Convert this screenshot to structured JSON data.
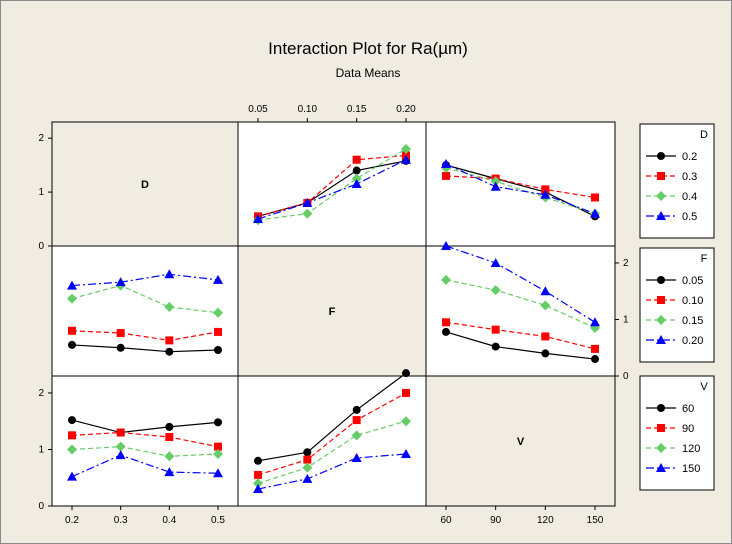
{
  "chart_data": {
    "type": "line",
    "title": "Interaction Plot for Ra(µm)",
    "subtitle": "Data Means",
    "factors": [
      {
        "name": "D",
        "levels": [
          "0.2",
          "0.3",
          "0.4",
          "0.5"
        ],
        "values": [
          0.2,
          0.3,
          0.4,
          0.5
        ]
      },
      {
        "name": "F",
        "levels": [
          "0.05",
          "0.10",
          "0.15",
          "0.20"
        ],
        "values": [
          0.05,
          0.1,
          0.15,
          0.2
        ]
      },
      {
        "name": "V",
        "levels": [
          "60",
          "90",
          "120",
          "150"
        ],
        "values": [
          60,
          90,
          120,
          150
        ]
      }
    ],
    "yaxis": {
      "ylim": [
        0,
        2.3
      ],
      "ticks": [
        0,
        1,
        2
      ]
    },
    "series_colors": [
      "#000000",
      "#ff0000",
      "#66cc66",
      "#0000ff"
    ],
    "series_markers": [
      "circle",
      "square",
      "diamond",
      "triangle"
    ],
    "panels": [
      {
        "row": "D",
        "col": "F",
        "series": [
          {
            "name": "0.2",
            "values": [
              0.55,
              0.8,
              1.4,
              1.58
            ]
          },
          {
            "name": "0.3",
            "values": [
              0.55,
              0.8,
              1.6,
              1.68
            ]
          },
          {
            "name": "0.4",
            "values": [
              0.48,
              0.6,
              1.25,
              1.8
            ]
          },
          {
            "name": "0.5",
            "values": [
              0.5,
              0.8,
              1.15,
              1.6
            ]
          }
        ]
      },
      {
        "row": "D",
        "col": "V",
        "series": [
          {
            "name": "0.2",
            "values": [
              1.5,
              1.25,
              1.0,
              0.55
            ]
          },
          {
            "name": "0.3",
            "values": [
              1.3,
              1.25,
              1.05,
              0.9
            ]
          },
          {
            "name": "0.4",
            "values": [
              1.45,
              1.2,
              0.9,
              0.6
            ]
          },
          {
            "name": "0.5",
            "values": [
              1.52,
              1.1,
              0.95,
              0.6
            ]
          }
        ]
      },
      {
        "row": "F",
        "col": "D",
        "series": [
          {
            "name": "0.05",
            "values": [
              0.55,
              0.5,
              0.43,
              0.46
            ]
          },
          {
            "name": "0.10",
            "values": [
              0.8,
              0.76,
              0.63,
              0.78
            ]
          },
          {
            "name": "0.15",
            "values": [
              1.37,
              1.6,
              1.22,
              1.12
            ]
          },
          {
            "name": "0.20",
            "values": [
              1.6,
              1.66,
              1.8,
              1.7
            ]
          }
        ]
      },
      {
        "row": "F",
        "col": "V",
        "series": [
          {
            "name": "0.05",
            "values": [
              0.78,
              0.52,
              0.4,
              0.3
            ]
          },
          {
            "name": "0.10",
            "values": [
              0.95,
              0.82,
              0.7,
              0.48
            ]
          },
          {
            "name": "0.15",
            "values": [
              1.7,
              1.52,
              1.25,
              0.85
            ]
          },
          {
            "name": "0.20",
            "values": [
              2.3,
              2.0,
              1.5,
              0.95
            ]
          }
        ]
      },
      {
        "row": "V",
        "col": "D",
        "series": [
          {
            "name": "60",
            "values": [
              1.52,
              1.3,
              1.4,
              1.48
            ]
          },
          {
            "name": "90",
            "values": [
              1.25,
              1.3,
              1.22,
              1.05
            ]
          },
          {
            "name": "120",
            "values": [
              1.0,
              1.05,
              0.88,
              0.92
            ]
          },
          {
            "name": "150",
            "values": [
              0.52,
              0.9,
              0.6,
              0.58
            ]
          }
        ]
      },
      {
        "row": "V",
        "col": "F",
        "series": [
          {
            "name": "60",
            "values": [
              0.8,
              0.95,
              1.7,
              2.35
            ]
          },
          {
            "name": "90",
            "values": [
              0.55,
              0.82,
              1.52,
              2.0
            ]
          },
          {
            "name": "120",
            "values": [
              0.4,
              0.68,
              1.25,
              1.5
            ]
          },
          {
            "name": "150",
            "values": [
              0.3,
              0.48,
              0.85,
              0.92
            ]
          }
        ]
      }
    ],
    "legends": [
      {
        "title": "D",
        "items": [
          "0.2",
          "0.3",
          "0.4",
          "0.5"
        ]
      },
      {
        "title": "F",
        "items": [
          "0.05",
          "0.10",
          "0.15",
          "0.20"
        ]
      },
      {
        "title": "V",
        "items": [
          "60",
          "90",
          "120",
          "150"
        ]
      }
    ]
  }
}
